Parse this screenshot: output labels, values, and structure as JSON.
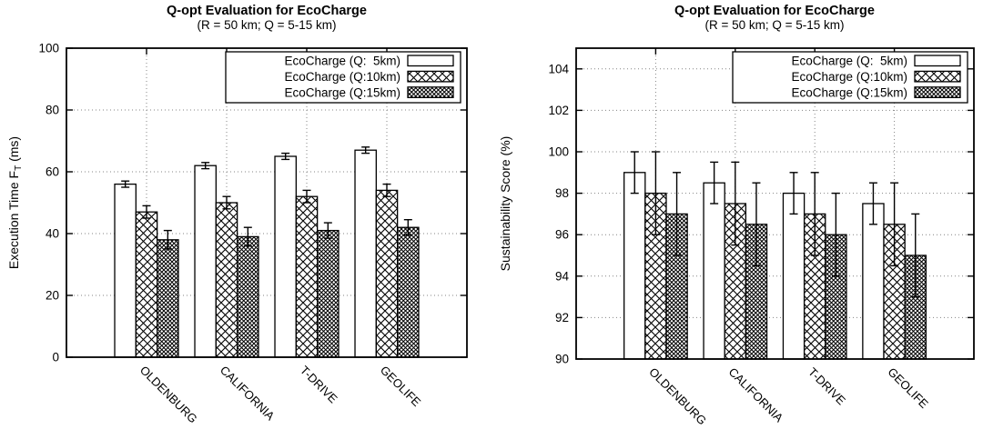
{
  "figure": {
    "background": "#ffffff",
    "foreground": "#000000",
    "grid_color": "#848484"
  },
  "chart_data": [
    {
      "type": "bar",
      "title": "Q-opt Evaluation for EcoCharge",
      "subtitle": "(R = 50 km; Q = 5-15 km)",
      "ylabel": "Execution Time F_T (ms)",
      "ylabel_parts": {
        "pre": "Execution Time F",
        "sub": "T",
        "post": " (ms)"
      },
      "xlabel": "",
      "categories": [
        "OLDENBURG",
        "CALIFORNIA",
        "T-DRIVE",
        "GEOLIFE"
      ],
      "ylim": [
        0,
        100
      ],
      "yticks": [
        0,
        20,
        40,
        60,
        80,
        100
      ],
      "grid": true,
      "legend_position": "top-right",
      "series": [
        {
          "name": "EcoCharge (Q:  5km)",
          "pattern": "plain",
          "values": [
            56,
            62,
            65,
            67
          ],
          "errors": [
            1,
            1,
            1,
            1
          ]
        },
        {
          "name": "EcoCharge (Q:10km)",
          "pattern": "crosshatch-wide",
          "values": [
            47,
            50,
            52,
            54
          ],
          "errors": [
            2,
            2,
            2,
            2
          ]
        },
        {
          "name": "EcoCharge (Q:15km)",
          "pattern": "crosshatch-dense",
          "values": [
            38,
            39,
            41,
            42
          ],
          "errors": [
            3,
            3,
            2.5,
            2.5
          ]
        }
      ]
    },
    {
      "type": "bar",
      "title": "Q-opt Evaluation for EcoCharge",
      "subtitle": "(R = 50 km; Q = 5-15 km)",
      "ylabel": "Sustainability Score (%)",
      "ylabel_parts": {
        "pre": "Sustainability Score (%)",
        "sub": "",
        "post": ""
      },
      "xlabel": "",
      "categories": [
        "OLDENBURG",
        "CALIFORNIA",
        "T-DRIVE",
        "GEOLIFE"
      ],
      "ylim": [
        90,
        105
      ],
      "yticks": [
        90,
        92,
        94,
        96,
        98,
        100,
        102,
        104
      ],
      "grid": true,
      "legend_position": "top-right",
      "series": [
        {
          "name": "EcoCharge (Q:  5km)",
          "pattern": "plain",
          "values": [
            99,
            98.5,
            98,
            97.5
          ],
          "errors": [
            1,
            1,
            1,
            1
          ]
        },
        {
          "name": "EcoCharge (Q:10km)",
          "pattern": "crosshatch-wide",
          "values": [
            98,
            97.5,
            97,
            96.5
          ],
          "errors": [
            2,
            2,
            2,
            2
          ]
        },
        {
          "name": "EcoCharge (Q:15km)",
          "pattern": "crosshatch-dense",
          "values": [
            97,
            96.5,
            96,
            95
          ],
          "errors": [
            2,
            2,
            2,
            2
          ]
        }
      ]
    }
  ]
}
